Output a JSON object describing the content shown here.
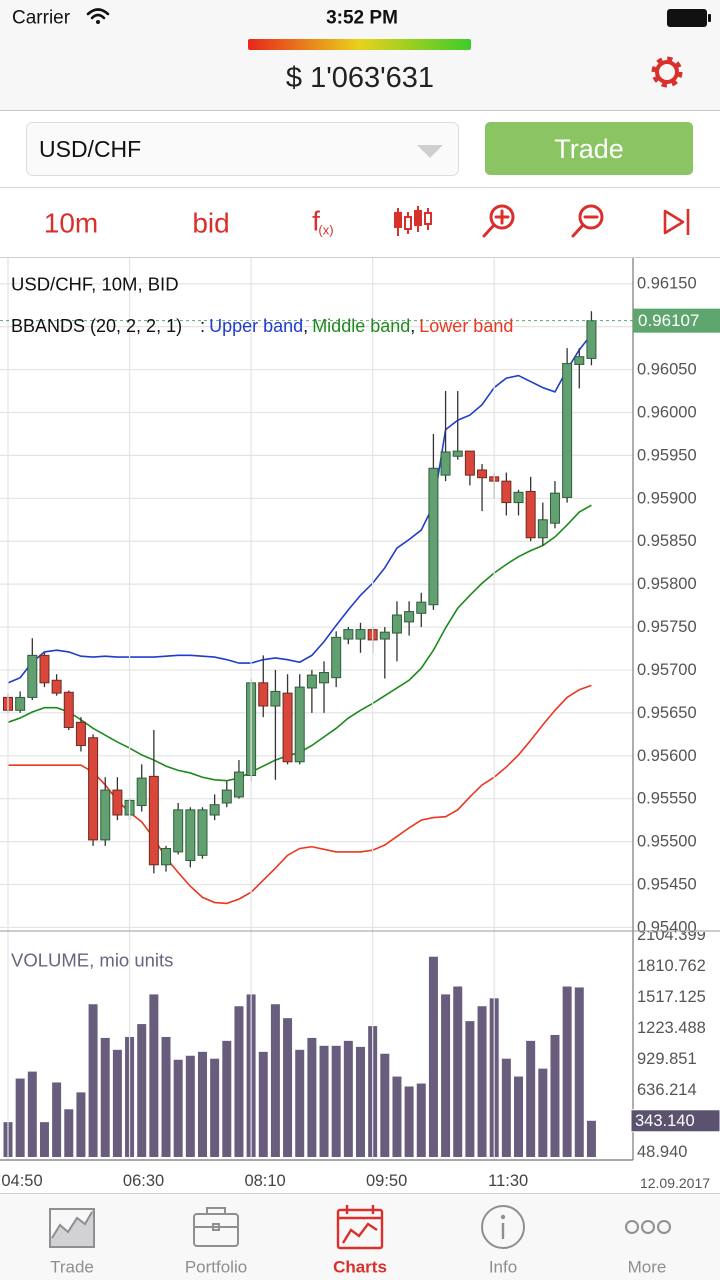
{
  "status_bar": {
    "carrier": "Carrier",
    "time": "3:52 PM"
  },
  "header": {
    "balance": "$ 1'063'631"
  },
  "instrument": {
    "symbol": "USD/CHF",
    "trade_button": "Trade"
  },
  "toolbar": {
    "interval": "10m",
    "price_side": "bid",
    "function": "f",
    "function_sub": "(x)"
  },
  "chart_data": [
    {
      "type": "candlestick",
      "title": "USD/CHF, 10M, BID",
      "indicator_label": "BBANDS (20, 2, 2, 1)",
      "legend_separators": [
        ":",
        ",",
        ","
      ],
      "up_color": "#62a072",
      "down_color": "#d8473a",
      "open": [
        0.95668,
        0.95653,
        0.95668,
        0.95717,
        0.95688,
        0.95674,
        0.95639,
        0.95621,
        0.95502,
        0.9556,
        0.95531,
        0.95542,
        0.95576,
        0.95473,
        0.95488,
        0.95478,
        0.95484,
        0.95531,
        0.95545,
        0.95552,
        0.95577,
        0.95685,
        0.95658,
        0.95673,
        0.95593,
        0.95679,
        0.95685,
        0.95691,
        0.95736,
        0.95736,
        0.95747,
        0.95736,
        0.95743,
        0.95756,
        0.95766,
        0.95776,
        0.95927,
        0.95949,
        0.95955,
        0.95933,
        0.95925,
        0.9592,
        0.95895,
        0.95908,
        0.95854,
        0.95871,
        0.95901,
        0.96056,
        0.96063
      ],
      "high": [
        0.95672,
        0.95675,
        0.95737,
        0.9572,
        0.95695,
        0.95676,
        0.95645,
        0.95625,
        0.95575,
        0.95575,
        0.9555,
        0.9559,
        0.9563,
        0.95495,
        0.95545,
        0.9554,
        0.9554,
        0.95555,
        0.9557,
        0.95595,
        0.9569,
        0.95717,
        0.957,
        0.95695,
        0.95695,
        0.957,
        0.9571,
        0.95745,
        0.9575,
        0.95755,
        0.9575,
        0.9575,
        0.9578,
        0.9578,
        0.9579,
        0.95975,
        0.96025,
        0.96025,
        0.95955,
        0.9594,
        0.9593,
        0.9593,
        0.9591,
        0.95925,
        0.95895,
        0.9592,
        0.96075,
        0.96075,
        0.96118
      ],
      "low": [
        0.9565,
        0.9565,
        0.95665,
        0.9568,
        0.9567,
        0.9563,
        0.95605,
        0.95495,
        0.95495,
        0.95525,
        0.95525,
        0.95535,
        0.95463,
        0.95465,
        0.95485,
        0.9547,
        0.9548,
        0.95525,
        0.9554,
        0.9555,
        0.9557,
        0.95645,
        0.95572,
        0.9559,
        0.9559,
        0.9565,
        0.9565,
        0.9568,
        0.9573,
        0.9572,
        0.9572,
        0.9569,
        0.9571,
        0.9574,
        0.9575,
        0.9577,
        0.9592,
        0.95945,
        0.95915,
        0.95885,
        0.959,
        0.9588,
        0.9588,
        0.9585,
        0.95845,
        0.95865,
        0.95895,
        0.96028,
        0.96055
      ],
      "close": [
        0.95653,
        0.95668,
        0.95717,
        0.95685,
        0.95673,
        0.95633,
        0.95612,
        0.95502,
        0.9556,
        0.95531,
        0.95548,
        0.95574,
        0.95473,
        0.95492,
        0.95537,
        0.95537,
        0.95537,
        0.95543,
        0.9556,
        0.95581,
        0.95685,
        0.95658,
        0.95675,
        0.95593,
        0.9568,
        0.95694,
        0.95697,
        0.95738,
        0.95747,
        0.95747,
        0.95735,
        0.95744,
        0.95764,
        0.95768,
        0.95779,
        0.95935,
        0.95954,
        0.95955,
        0.95927,
        0.95924,
        0.9592,
        0.95895,
        0.95907,
        0.95854,
        0.95875,
        0.95906,
        0.96057,
        0.96065,
        0.96107
      ],
      "series": [
        {
          "name": "Upper band",
          "color": "#1f3ccc",
          "values": [
            0.95685,
            0.95691,
            0.95709,
            0.95721,
            0.95723,
            0.95721,
            0.95716,
            0.95715,
            0.95716,
            0.95715,
            0.95715,
            0.95715,
            0.95715,
            0.95716,
            0.95717,
            0.95717,
            0.95716,
            0.95715,
            0.95712,
            0.95708,
            0.95708,
            0.95712,
            0.95714,
            0.95712,
            0.95709,
            0.95717,
            0.95733,
            0.95752,
            0.9577,
            0.95787,
            0.95801,
            0.95819,
            0.95842,
            0.95852,
            0.95863,
            0.95892,
            0.9598,
            0.95991,
            0.95997,
            0.96009,
            0.96029,
            0.9604,
            0.96043,
            0.96036,
            0.96029,
            0.96024,
            0.9605,
            0.96073,
            0.96091
          ]
        },
        {
          "name": "Middle band",
          "color": "#1d8a1d",
          "values": [
            0.95639,
            0.95644,
            0.95651,
            0.95656,
            0.95656,
            0.95651,
            0.95642,
            0.95632,
            0.95624,
            0.95616,
            0.95609,
            0.95601,
            0.95595,
            0.95588,
            0.95583,
            0.9558,
            0.95575,
            0.95572,
            0.95571,
            0.95574,
            0.95581,
            0.95588,
            0.95595,
            0.956,
            0.95604,
            0.95612,
            0.95622,
            0.95632,
            0.95644,
            0.95653,
            0.95661,
            0.9567,
            0.95679,
            0.95688,
            0.95702,
            0.95723,
            0.95749,
            0.95772,
            0.95787,
            0.95801,
            0.95813,
            0.95823,
            0.95832,
            0.95839,
            0.95845,
            0.95855,
            0.95869,
            0.95884,
            0.95892
          ]
        },
        {
          "name": "Lower band",
          "color": "#e8381f",
          "values": [
            0.95589,
            0.95589,
            0.95589,
            0.95589,
            0.95589,
            0.95589,
            0.95589,
            0.95581,
            0.95566,
            0.95548,
            0.95534,
            0.95523,
            0.95504,
            0.95481,
            0.95464,
            0.95448,
            0.95435,
            0.95429,
            0.95428,
            0.95433,
            0.95441,
            0.95455,
            0.95469,
            0.95484,
            0.95492,
            0.95494,
            0.95491,
            0.95488,
            0.95488,
            0.95488,
            0.9549,
            0.95496,
            0.95506,
            0.95516,
            0.95525,
            0.95528,
            0.95529,
            0.95537,
            0.95552,
            0.95566,
            0.95575,
            0.95587,
            0.95601,
            0.95618,
            0.95636,
            0.95653,
            0.95668,
            0.95677,
            0.95682
          ]
        }
      ],
      "ylim": [
        0.95397,
        0.9618
      ],
      "yticks": [
        {
          "value": 0.9615,
          "label": "0.96150"
        },
        {
          "value": 0.961,
          "label": "0.96100"
        },
        {
          "value": 0.9605,
          "label": "0.96050"
        },
        {
          "value": 0.96,
          "label": "0.96000"
        },
        {
          "value": 0.9595,
          "label": "0.95950"
        },
        {
          "value": 0.959,
          "label": "0.95900"
        },
        {
          "value": 0.9585,
          "label": "0.95850"
        },
        {
          "value": 0.958,
          "label": "0.95800"
        },
        {
          "value": 0.9575,
          "label": "0.95750"
        },
        {
          "value": 0.957,
          "label": "0.95700"
        },
        {
          "value": 0.9565,
          "label": "0.95650"
        },
        {
          "value": 0.956,
          "label": "0.95600"
        },
        {
          "value": 0.9555,
          "label": "0.95550"
        },
        {
          "value": 0.955,
          "label": "0.95500"
        },
        {
          "value": 0.9545,
          "label": "0.95450"
        },
        {
          "value": 0.954,
          "label": "0.95400"
        }
      ],
      "last_value": 0.96107,
      "last_color": "#5ea56e",
      "grid": true
    },
    {
      "type": "bar",
      "title": "VOLUME, mio units",
      "color": "#695d7e",
      "categories": [
        "04:50",
        null,
        null,
        null,
        null,
        null,
        null,
        null,
        null,
        null,
        "06:30",
        null,
        null,
        null,
        null,
        null,
        null,
        null,
        null,
        null,
        "08:10",
        null,
        null,
        null,
        null,
        null,
        null,
        null,
        null,
        null,
        "09:50",
        null,
        null,
        null,
        null,
        null,
        null,
        null,
        null,
        null,
        "11:30",
        null,
        null,
        null,
        null,
        null,
        null,
        null,
        null
      ],
      "values": [
        330,
        743,
        809,
        330,
        706,
        452,
        612,
        1447,
        1128,
        1015,
        1137,
        1259,
        1540,
        1137,
        921,
        959,
        996,
        931,
        1100,
        1428,
        1540,
        996,
        1447,
        1315,
        1015,
        1128,
        1053,
        1053,
        1100,
        1043,
        1240,
        978,
        762,
        668,
        696,
        1897,
        1540,
        1615,
        1287,
        1428,
        1503,
        931,
        762,
        1100,
        837,
        1156,
        1615,
        1606,
        343.14
      ],
      "ylim": [
        0,
        2150
      ],
      "yticks": [
        {
          "value": 48.94,
          "label": "48.940"
        },
        {
          "value": 343.14,
          "label": "343.140"
        },
        636.214,
        929.851,
        1223.488,
        1517.125,
        1810.762,
        2104.399
      ],
      "last_value": {
        "value": 343.14,
        "label": "343.140"
      },
      "last_color": "#5b5270",
      "date_label": "12.09.2017"
    }
  ],
  "tab_bar": {
    "items": [
      "Trade",
      "Portfolio",
      "Charts",
      "Info",
      "More"
    ],
    "active": 2,
    "active_color": "#d9302c"
  }
}
